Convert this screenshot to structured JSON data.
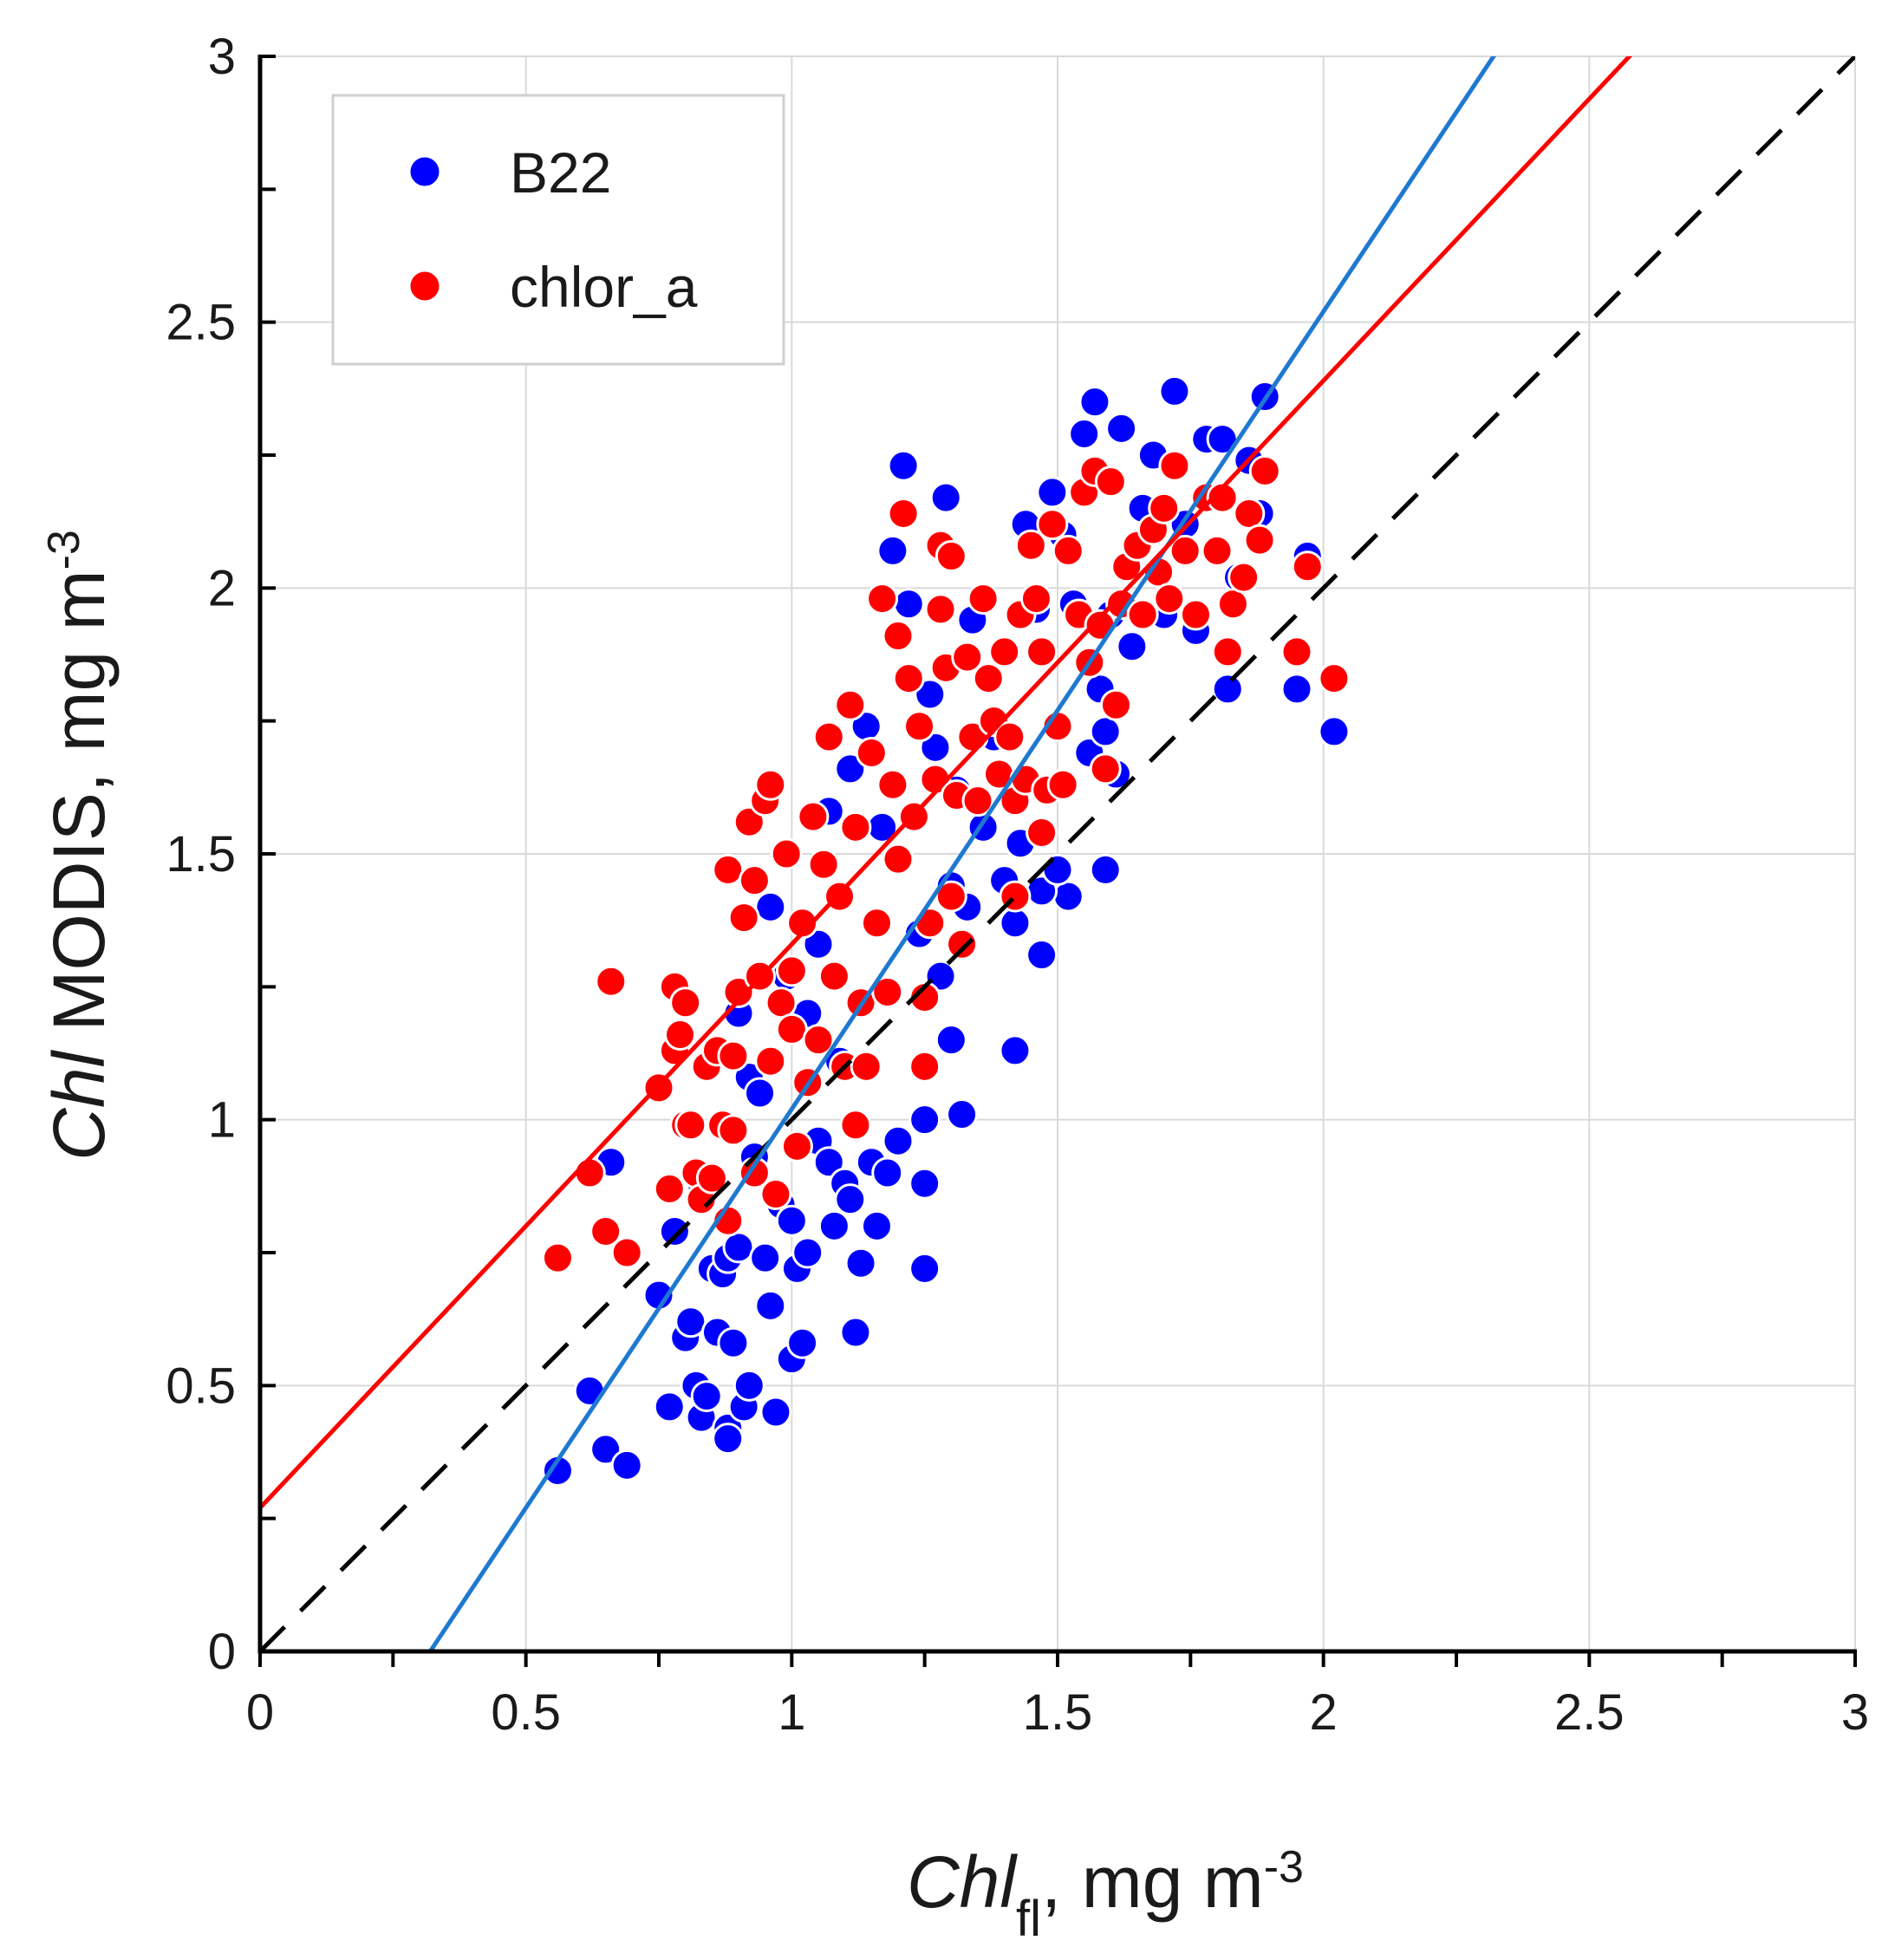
{
  "chart_data": {
    "type": "scatter",
    "xlim": [
      0,
      3
    ],
    "ylim": [
      0,
      3
    ],
    "x_ticks": [
      "0",
      "0.5",
      "1",
      "1.5",
      "2",
      "2.5",
      "3"
    ],
    "y_ticks": [
      "0",
      "0.5",
      "1",
      "1.5",
      "2",
      "2.5",
      "3"
    ],
    "grid": true,
    "legend_position": "top-left",
    "xlabel": {
      "italic": "Chl",
      "subscript": "fl",
      "unit": ", mg m",
      "unit_exp": "-3"
    },
    "ylabel": {
      "italic": "Chl",
      "rest": " MODIS, mg m",
      "unit_exp": "-3"
    },
    "series": [
      {
        "name": "B22",
        "color": "#0000ff",
        "fit": {
          "slope": 1.5,
          "intercept": -0.48,
          "color": "#1f78d0"
        },
        "points": [
          [
            0.56,
            0.34
          ],
          [
            0.62,
            0.49
          ],
          [
            0.65,
            0.38
          ],
          [
            0.66,
            0.92
          ],
          [
            0.69,
            0.35
          ],
          [
            0.75,
            0.67
          ],
          [
            0.77,
            0.46
          ],
          [
            0.78,
            0.79
          ],
          [
            0.8,
            0.59
          ],
          [
            0.81,
            0.62
          ],
          [
            0.82,
            0.5
          ],
          [
            0.83,
            0.44
          ],
          [
            0.84,
            0.48
          ],
          [
            0.85,
            0.72
          ],
          [
            0.86,
            0.6
          ],
          [
            0.87,
            0.71
          ],
          [
            0.88,
            0.42
          ],
          [
            0.88,
            0.4
          ],
          [
            0.88,
            0.74
          ],
          [
            0.89,
            0.58
          ],
          [
            0.9,
            0.76
          ],
          [
            0.91,
            0.46
          ],
          [
            0.92,
            0.5
          ],
          [
            0.93,
            0.93
          ],
          [
            0.95,
            0.74
          ],
          [
            0.96,
            0.65
          ],
          [
            0.97,
            0.45
          ],
          [
            0.98,
            0.84
          ],
          [
            1.0,
            0.81
          ],
          [
            1.0,
            0.55
          ],
          [
            1.01,
            0.72
          ],
          [
            1.02,
            0.58
          ],
          [
            1.03,
            0.75
          ],
          [
            1.05,
            0.96
          ],
          [
            1.07,
            0.92
          ],
          [
            1.08,
            0.8
          ],
          [
            1.1,
            0.88
          ],
          [
            1.11,
            0.85
          ],
          [
            1.12,
            0.6
          ],
          [
            1.13,
            0.73
          ],
          [
            1.15,
            0.92
          ],
          [
            1.16,
            0.8
          ],
          [
            1.18,
            0.9
          ],
          [
            1.2,
            0.96
          ],
          [
            1.25,
            0.88
          ],
          [
            1.25,
            0.72
          ],
          [
            1.25,
            1.0
          ],
          [
            1.3,
            1.15
          ],
          [
            1.32,
            1.01
          ],
          [
            1.42,
            1.13
          ],
          [
            1.47,
            1.31
          ],
          [
            1.52,
            1.42
          ],
          [
            1.59,
            1.47
          ],
          [
            0.83,
            0.88
          ],
          [
            0.9,
            1.2
          ],
          [
            0.92,
            1.08
          ],
          [
            0.94,
            1.05
          ],
          [
            0.96,
            1.4
          ],
          [
            0.99,
            1.27
          ],
          [
            1.03,
            1.2
          ],
          [
            1.05,
            1.33
          ],
          [
            1.07,
            1.58
          ],
          [
            1.09,
            1.11
          ],
          [
            1.11,
            1.66
          ],
          [
            1.14,
            1.74
          ],
          [
            1.17,
            1.55
          ],
          [
            1.19,
            2.07
          ],
          [
            1.21,
            2.23
          ],
          [
            1.22,
            1.97
          ],
          [
            1.24,
            1.35
          ],
          [
            1.26,
            1.8
          ],
          [
            1.27,
            1.7
          ],
          [
            1.28,
            1.27
          ],
          [
            1.29,
            2.17
          ],
          [
            1.3,
            1.44
          ],
          [
            1.31,
            1.62
          ],
          [
            1.33,
            1.4
          ],
          [
            1.34,
            1.94
          ],
          [
            1.36,
            1.55
          ],
          [
            1.38,
            1.72
          ],
          [
            1.4,
            1.45
          ],
          [
            1.42,
            1.37
          ],
          [
            1.43,
            1.52
          ],
          [
            1.44,
            2.12
          ],
          [
            1.46,
            1.96
          ],
          [
            1.47,
            1.43
          ],
          [
            1.49,
            2.18
          ],
          [
            1.5,
            1.47
          ],
          [
            1.51,
            2.1
          ],
          [
            1.53,
            1.97
          ],
          [
            1.55,
            2.29
          ],
          [
            1.56,
            1.69
          ],
          [
            1.57,
            2.35
          ],
          [
            1.58,
            1.81
          ],
          [
            1.59,
            1.73
          ],
          [
            1.6,
            1.95
          ],
          [
            1.61,
            1.65
          ],
          [
            1.62,
            2.3
          ],
          [
            1.64,
            1.89
          ],
          [
            1.66,
            2.15
          ],
          [
            1.68,
            2.25
          ],
          [
            1.7,
            1.95
          ],
          [
            1.72,
            2.37
          ],
          [
            1.74,
            2.12
          ],
          [
            1.76,
            1.92
          ],
          [
            1.78,
            2.28
          ],
          [
            1.8,
            2.17
          ],
          [
            1.81,
            2.28
          ],
          [
            1.82,
            1.81
          ],
          [
            1.84,
            2.02
          ],
          [
            1.86,
            2.24
          ],
          [
            1.88,
            2.14
          ],
          [
            1.89,
            2.36
          ],
          [
            1.95,
            1.81
          ],
          [
            1.97,
            2.06
          ],
          [
            2.02,
            1.73
          ]
        ]
      },
      {
        "name": "chlor_a",
        "color": "#ff0000",
        "fit": {
          "slope": 1.06,
          "intercept": 0.27,
          "color": "#ff0000"
        },
        "points": [
          [
            0.56,
            0.74
          ],
          [
            0.62,
            0.9
          ],
          [
            0.65,
            0.79
          ],
          [
            0.66,
            1.26
          ],
          [
            0.69,
            0.75
          ],
          [
            0.75,
            1.06
          ],
          [
            0.77,
            0.87
          ],
          [
            0.78,
            1.25
          ],
          [
            0.78,
            1.13
          ],
          [
            0.79,
            1.16
          ],
          [
            0.8,
            1.22
          ],
          [
            0.8,
            0.99
          ],
          [
            0.81,
            0.99
          ],
          [
            0.82,
            0.9
          ],
          [
            0.83,
            0.85
          ],
          [
            0.84,
            1.1
          ],
          [
            0.85,
            0.89
          ],
          [
            0.86,
            1.13
          ],
          [
            0.87,
            0.99
          ],
          [
            0.88,
            0.81
          ],
          [
            0.88,
            1.47
          ],
          [
            0.89,
            1.12
          ],
          [
            0.89,
            0.98
          ],
          [
            0.9,
            1.24
          ],
          [
            0.91,
            1.38
          ],
          [
            0.92,
            1.56
          ],
          [
            0.93,
            0.9
          ],
          [
            0.93,
            1.45
          ],
          [
            0.94,
            1.27
          ],
          [
            0.95,
            1.6
          ],
          [
            0.96,
            1.11
          ],
          [
            0.96,
            1.63
          ],
          [
            0.97,
            0.86
          ],
          [
            0.98,
            1.22
          ],
          [
            0.99,
            1.5
          ],
          [
            1.0,
            1.17
          ],
          [
            1.0,
            1.28
          ],
          [
            1.01,
            0.95
          ],
          [
            1.02,
            1.37
          ],
          [
            1.03,
            1.07
          ],
          [
            1.04,
            1.57
          ],
          [
            1.05,
            1.15
          ],
          [
            1.06,
            1.48
          ],
          [
            1.07,
            1.72
          ],
          [
            1.08,
            1.27
          ],
          [
            1.09,
            1.42
          ],
          [
            1.1,
            1.1
          ],
          [
            1.11,
            1.78
          ],
          [
            1.12,
            0.99
          ],
          [
            1.12,
            1.55
          ],
          [
            1.13,
            1.22
          ],
          [
            1.14,
            1.1
          ],
          [
            1.15,
            1.69
          ],
          [
            1.16,
            1.37
          ],
          [
            1.17,
            1.98
          ],
          [
            1.18,
            1.24
          ],
          [
            1.19,
            1.63
          ],
          [
            1.2,
            1.91
          ],
          [
            1.2,
            1.49
          ],
          [
            1.21,
            2.14
          ],
          [
            1.22,
            1.83
          ],
          [
            1.23,
            1.57
          ],
          [
            1.24,
            1.74
          ],
          [
            1.25,
            1.23
          ],
          [
            1.25,
            1.1
          ],
          [
            1.26,
            1.37
          ],
          [
            1.27,
            1.64
          ],
          [
            1.28,
            1.96
          ],
          [
            1.28,
            2.08
          ],
          [
            1.29,
            1.85
          ],
          [
            1.3,
            1.42
          ],
          [
            1.3,
            2.06
          ],
          [
            1.31,
            1.61
          ],
          [
            1.32,
            1.33
          ],
          [
            1.33,
            1.87
          ],
          [
            1.34,
            1.72
          ],
          [
            1.35,
            1.6
          ],
          [
            1.36,
            1.98
          ],
          [
            1.37,
            1.83
          ],
          [
            1.38,
            1.75
          ],
          [
            1.39,
            1.65
          ],
          [
            1.4,
            1.88
          ],
          [
            1.41,
            1.72
          ],
          [
            1.42,
            1.6
          ],
          [
            1.42,
            1.42
          ],
          [
            1.43,
            1.95
          ],
          [
            1.44,
            1.64
          ],
          [
            1.45,
            2.08
          ],
          [
            1.46,
            1.98
          ],
          [
            1.47,
            1.54
          ],
          [
            1.47,
            1.88
          ],
          [
            1.48,
            1.62
          ],
          [
            1.49,
            2.12
          ],
          [
            1.5,
            1.74
          ],
          [
            1.51,
            1.63
          ],
          [
            1.52,
            2.07
          ],
          [
            1.54,
            1.95
          ],
          [
            1.55,
            2.18
          ],
          [
            1.56,
            1.86
          ],
          [
            1.57,
            2.22
          ],
          [
            1.58,
            1.93
          ],
          [
            1.59,
            1.66
          ],
          [
            1.6,
            2.2
          ],
          [
            1.61,
            1.78
          ],
          [
            1.62,
            1.97
          ],
          [
            1.63,
            2.04
          ],
          [
            1.65,
            2.08
          ],
          [
            1.66,
            1.95
          ],
          [
            1.68,
            2.11
          ],
          [
            1.69,
            2.03
          ],
          [
            1.7,
            2.15
          ],
          [
            1.71,
            1.98
          ],
          [
            1.72,
            2.23
          ],
          [
            1.74,
            2.07
          ],
          [
            1.76,
            1.95
          ],
          [
            1.78,
            2.17
          ],
          [
            1.8,
            2.07
          ],
          [
            1.81,
            2.17
          ],
          [
            1.82,
            1.88
          ],
          [
            1.83,
            1.97
          ],
          [
            1.85,
            2.02
          ],
          [
            1.86,
            2.14
          ],
          [
            1.88,
            2.09
          ],
          [
            1.89,
            2.22
          ],
          [
            1.95,
            1.88
          ],
          [
            1.97,
            2.04
          ],
          [
            2.02,
            1.83
          ]
        ]
      }
    ],
    "reference_line": {
      "slope": 1,
      "intercept": 0,
      "style": "dashed",
      "color": "#000000"
    }
  }
}
